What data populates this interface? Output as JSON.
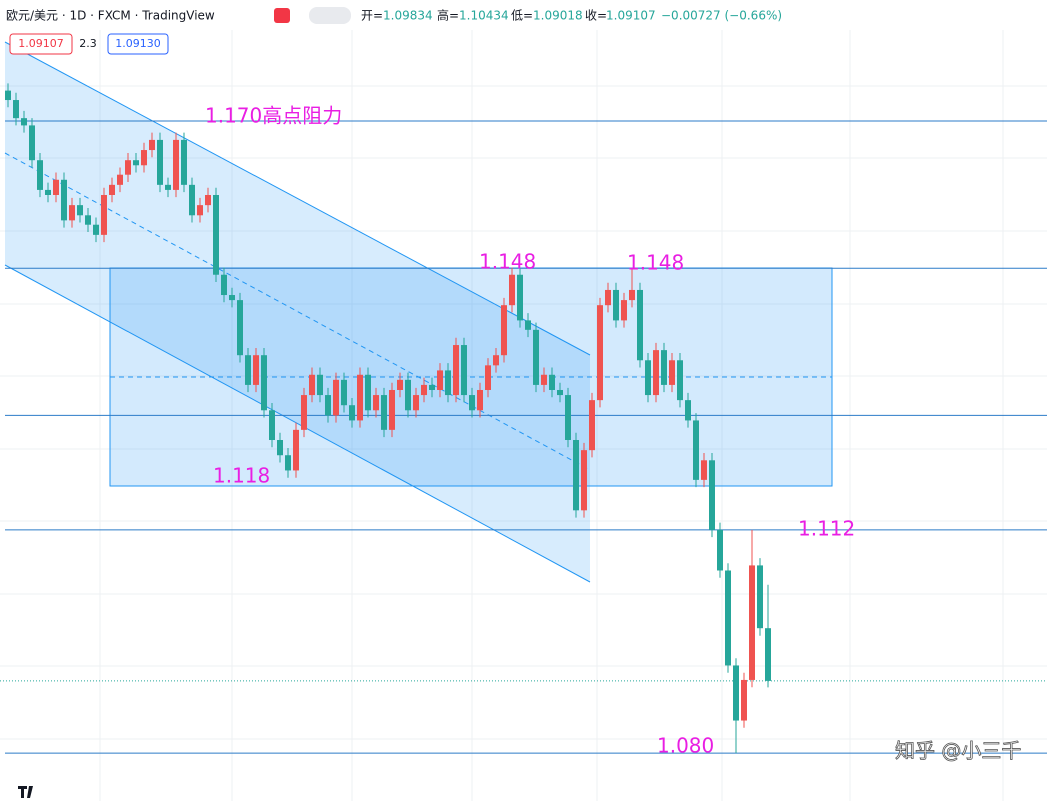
{
  "header": {
    "symbol": "欧元/美元 · 1D · FXCM · TradingView",
    "open_label": "开=",
    "high_label": "高=",
    "low_label": "低=",
    "close_label": "收=",
    "change": "−0.00727 (−0.66%)",
    "spread": "2.3",
    "ask": "1.09130"
  },
  "chart_data": {
    "type": "candlestick",
    "up_color": "#ef5350",
    "down_color": "#26a69a",
    "ylim": [
      1.0745,
      1.185
    ],
    "open": [
      1.1725,
      1.1712,
      1.1687,
      1.1677,
      1.1629,
      1.1588,
      1.1581,
      1.1602,
      1.1546,
      1.1567,
      1.1553,
      1.154,
      1.1526,
      1.1581,
      1.1595,
      1.1609,
      1.1629,
      1.1622,
      1.1643,
      1.1657,
      1.1595,
      1.1588,
      1.1657,
      1.1595,
      1.1553,
      1.1567,
      1.1581,
      1.1471,
      1.1443,
      1.1436,
      1.136,
      1.1319,
      1.136,
      1.1284,
      1.1243,
      1.1222,
      1.1201,
      1.1257,
      1.1305,
      1.1333,
      1.1305,
      1.1277,
      1.1326,
      1.1291,
      1.127,
      1.1333,
      1.1284,
      1.1305,
      1.1257,
      1.1312,
      1.1326,
      1.1284,
      1.1305,
      1.1319,
      1.1312,
      1.1339,
      1.1305,
      1.1374,
      1.1305,
      1.1284,
      1.1312,
      1.1346,
      1.136,
      1.1429,
      1.1471,
      1.1408,
      1.1395,
      1.1319,
      1.1333,
      1.1312,
      1.1305,
      1.1243,
      1.1146,
      1.1229,
      1.1298,
      1.1429,
      1.145,
      1.1408,
      1.1436,
      1.145,
      1.1353,
      1.1305,
      1.1367,
      1.1319,
      1.1353,
      1.1298,
      1.127,
      1.1188,
      1.1215,
      1.1119,
      1.1063,
      1.0932,
      1.0856,
      1.0912,
      1.107,
      1.09834
    ],
    "high": [
      1.1735,
      1.1722,
      1.1697,
      1.1687,
      1.1639,
      1.1598,
      1.1612,
      1.1612,
      1.1577,
      1.1577,
      1.1563,
      1.155,
      1.1591,
      1.1605,
      1.1619,
      1.1639,
      1.1639,
      1.1653,
      1.1667,
      1.1667,
      1.1605,
      1.1667,
      1.1667,
      1.1605,
      1.1577,
      1.1591,
      1.1591,
      1.1481,
      1.1453,
      1.1446,
      1.137,
      1.137,
      1.137,
      1.1294,
      1.1253,
      1.1232,
      1.1267,
      1.1315,
      1.1343,
      1.1343,
      1.1315,
      1.1336,
      1.1336,
      1.1301,
      1.1343,
      1.1343,
      1.1315,
      1.1315,
      1.1322,
      1.1336,
      1.1336,
      1.1315,
      1.1329,
      1.1329,
      1.1349,
      1.1349,
      1.1384,
      1.1384,
      1.1315,
      1.1322,
      1.1356,
      1.137,
      1.1439,
      1.1481,
      1.1481,
      1.1418,
      1.1405,
      1.1343,
      1.1343,
      1.1322,
      1.1315,
      1.1253,
      1.1239,
      1.1308,
      1.1439,
      1.146,
      1.146,
      1.1446,
      1.148,
      1.146,
      1.1363,
      1.1377,
      1.1377,
      1.1363,
      1.1363,
      1.1308,
      1.128,
      1.1225,
      1.1225,
      1.1129,
      1.1073,
      1.0942,
      1.0922,
      1.1119,
      1.108,
      1.10434
    ],
    "low": [
      1.1702,
      1.1677,
      1.1667,
      1.1619,
      1.1578,
      1.1571,
      1.1571,
      1.1536,
      1.1536,
      1.1543,
      1.153,
      1.1516,
      1.1516,
      1.1571,
      1.1585,
      1.1599,
      1.1612,
      1.1612,
      1.1633,
      1.1585,
      1.1578,
      1.1578,
      1.1585,
      1.1543,
      1.1543,
      1.1557,
      1.1461,
      1.1433,
      1.1426,
      1.135,
      1.1309,
      1.1309,
      1.1274,
      1.1233,
      1.1212,
      1.1191,
      1.1191,
      1.1247,
      1.1295,
      1.1295,
      1.1267,
      1.1267,
      1.1281,
      1.126,
      1.126,
      1.1274,
      1.1274,
      1.1247,
      1.1247,
      1.1302,
      1.1274,
      1.1274,
      1.1295,
      1.1302,
      1.1302,
      1.1295,
      1.1295,
      1.1295,
      1.1274,
      1.1274,
      1.1302,
      1.1336,
      1.135,
      1.1419,
      1.1398,
      1.1385,
      1.1309,
      1.1309,
      1.1302,
      1.1295,
      1.1233,
      1.1136,
      1.1136,
      1.1219,
      1.1288,
      1.1419,
      1.1398,
      1.1398,
      1.1426,
      1.1343,
      1.1295,
      1.1295,
      1.1309,
      1.1309,
      1.1288,
      1.126,
      1.1178,
      1.1178,
      1.1109,
      1.1053,
      1.0922,
      1.0811,
      1.0846,
      1.0902,
      1.0973,
      1.09018
    ],
    "close": [
      1.1712,
      1.1687,
      1.1677,
      1.1629,
      1.1588,
      1.1581,
      1.1602,
      1.1546,
      1.1567,
      1.1553,
      1.154,
      1.1526,
      1.1581,
      1.1595,
      1.1609,
      1.1629,
      1.1622,
      1.1643,
      1.1657,
      1.1595,
      1.1588,
      1.1657,
      1.1595,
      1.1553,
      1.1567,
      1.1581,
      1.1471,
      1.1443,
      1.1436,
      1.136,
      1.1319,
      1.136,
      1.1284,
      1.1243,
      1.1222,
      1.1201,
      1.1257,
      1.1305,
      1.1333,
      1.1305,
      1.1277,
      1.1326,
      1.1291,
      1.127,
      1.1333,
      1.1284,
      1.1305,
      1.1257,
      1.1312,
      1.1326,
      1.1284,
      1.1305,
      1.1319,
      1.1312,
      1.1339,
      1.1305,
      1.1374,
      1.1305,
      1.1284,
      1.1312,
      1.1346,
      1.136,
      1.1429,
      1.1471,
      1.1408,
      1.1395,
      1.1319,
      1.1333,
      1.1312,
      1.1305,
      1.1243,
      1.1146,
      1.1229,
      1.1298,
      1.1429,
      1.145,
      1.1408,
      1.1436,
      1.145,
      1.1353,
      1.1305,
      1.1367,
      1.1319,
      1.1353,
      1.1298,
      1.127,
      1.1188,
      1.1215,
      1.1119,
      1.1063,
      1.0932,
      1.0856,
      1.0912,
      1.107,
      1.09834,
      1.09107
    ],
    "levels": [
      1.1683,
      1.148,
      1.1277,
      1.1119,
      1.0811
    ],
    "annotations": [
      "1.170高点阻力",
      "1.148",
      "1.148",
      "1.118",
      "1.112",
      "1.080"
    ],
    "watermark": "知乎 @小三千"
  }
}
